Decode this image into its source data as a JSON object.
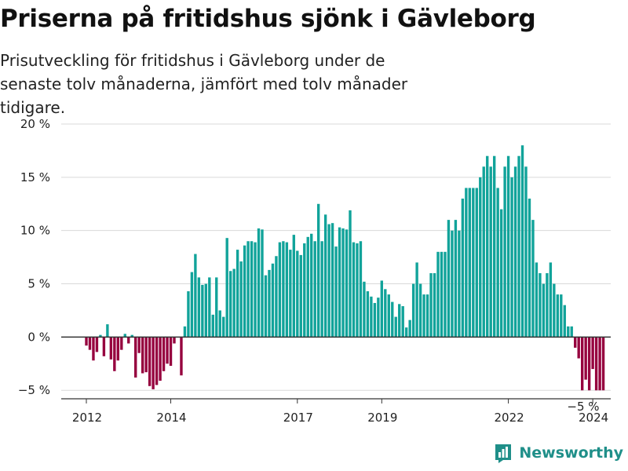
{
  "title": "Priserna på fritidshus sjönk i Gävleborg",
  "subtitle": "Prisutveckling för fritidshus i Gävleborg under de senaste tolv månaderna, jämfört med tolv månader tidigare.",
  "brand": {
    "name": "Newsworthy",
    "icon": "bar-chart-logo-icon"
  },
  "colors": {
    "positive": "#11a39a",
    "negative": "#96003e",
    "grid": "#d9d9d9",
    "axis": "#333333",
    "brand": "#1f8f89"
  },
  "chart_data": {
    "type": "bar",
    "title": "Priserna på fritidshus sjönk i Gävleborg",
    "subtitle": "Prisutveckling för fritidshus i Gävleborg under de senaste tolv månaderna, jämfört med tolv månader tidigare.",
    "xlabel": "",
    "ylabel": "",
    "ylim": [
      -5.5,
      20
    ],
    "grid": true,
    "y_ticks": [
      20,
      15,
      10,
      5,
      0,
      -5
    ],
    "y_tick_labels": [
      "20 %",
      "15 %",
      "10 %",
      "5 %",
      "0 %",
      "−5 %"
    ],
    "x_tick_labels": [
      {
        "label": "2012",
        "index": 0
      },
      {
        "label": "2014",
        "index": 24
      },
      {
        "label": "2017",
        "index": 60
      },
      {
        "label": "2019",
        "index": 84
      },
      {
        "label": "2022",
        "index": 120
      },
      {
        "label": "2024",
        "index": 144
      }
    ],
    "annotation": "−5 %",
    "start": "2011-12",
    "frequency": "monthly",
    "values": [
      -0.8,
      -1.2,
      -2.2,
      -1.4,
      0.2,
      -1.8,
      1.2,
      -2.1,
      -3.2,
      -2.2,
      -1.2,
      0.3,
      -0.6,
      0.2,
      -3.8,
      -1.5,
      -3.4,
      -3.3,
      -4.6,
      -4.9,
      -4.5,
      -4.1,
      -3.2,
      -2.5,
      -2.7,
      -0.6,
      0,
      -3.6,
      1.0,
      4.3,
      6.1,
      7.8,
      5.6,
      4.9,
      5.0,
      5.6,
      2.1,
      5.6,
      2.5,
      1.9,
      9.3,
      6.2,
      6.4,
      8.2,
      7.1,
      8.6,
      9.0,
      9.0,
      8.9,
      10.2,
      10.1,
      5.8,
      6.3,
      6.9,
      7.6,
      8.9,
      9.0,
      8.9,
      8.2,
      9.6,
      8.1,
      7.7,
      8.8,
      9.4,
      9.7,
      9.0,
      12.5,
      9.0,
      11.5,
      10.6,
      10.7,
      8.5,
      10.3,
      10.2,
      10.1,
      11.9,
      8.9,
      8.8,
      9.0,
      5.2,
      4.3,
      3.8,
      3.2,
      3.7,
      5.3,
      4.5,
      4.0,
      3.3,
      1.9,
      3.1,
      2.9,
      0.9,
      1.6,
      5.0,
      7.0,
      5.0,
      4.0,
      4.0,
      6.0,
      6.0,
      8.0,
      8.0,
      8.0,
      11.0,
      10.0,
      11.0,
      10.0,
      13.0,
      14.0,
      14.0,
      14.0,
      14.0,
      15.0,
      16.0,
      17.0,
      16.0,
      17.0,
      14.0,
      12.0,
      16.0,
      17.0,
      15.0,
      16.0,
      17.0,
      18.0,
      16.0,
      13.0,
      11.0,
      7.0,
      6.0,
      5.0,
      6.0,
      7.0,
      5.0,
      4.0,
      4.0,
      3.0,
      1.0,
      1.0,
      -1.0,
      -2.0,
      -5.0,
      -4.0,
      -5.0,
      -3.0,
      -5.0,
      -5.0,
      -5.0
    ]
  }
}
